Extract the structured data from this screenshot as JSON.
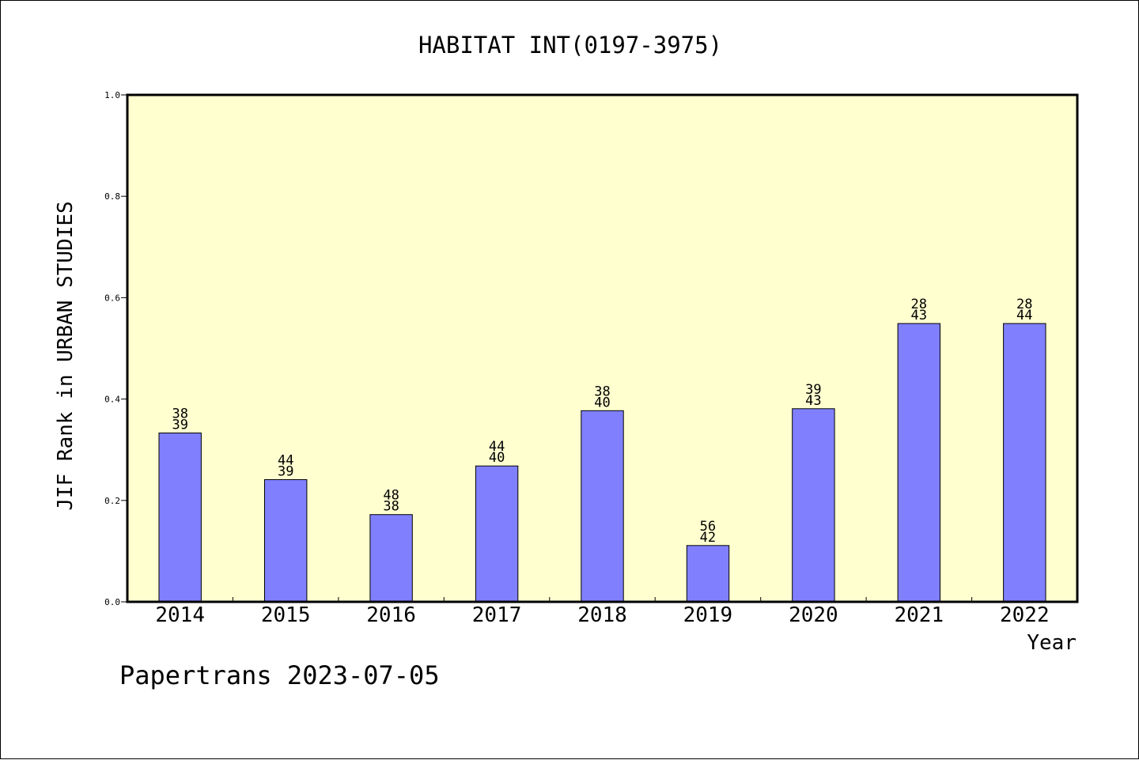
{
  "chart_data": {
    "type": "bar",
    "title": "HABITAT INT(0197-3975)",
    "xlabel": "Year",
    "ylabel": "JIF Rank in URBAN STUDIES",
    "ylim": [
      0,
      1.0
    ],
    "yticks": [
      "0.0",
      "0.2",
      "0.4",
      "0.6",
      "0.8",
      "1.0"
    ],
    "categories": [
      "2014",
      "2015",
      "2016",
      "2017",
      "2018",
      "2019",
      "2020",
      "2021",
      "2022"
    ],
    "values": [
      0.333,
      0.241,
      0.172,
      0.268,
      0.377,
      0.111,
      0.381,
      0.549,
      0.549
    ],
    "labels_top": [
      "38",
      "44",
      "48",
      "44",
      "38",
      "56",
      "39",
      "28",
      "28"
    ],
    "labels_bottom": [
      "39",
      "39",
      "38",
      "40",
      "40",
      "42",
      "43",
      "43",
      "44"
    ],
    "colors": {
      "bar": "#8080ff",
      "plot_bg": "#ffffd0"
    },
    "footer": "Papertrans 2023-07-05"
  }
}
